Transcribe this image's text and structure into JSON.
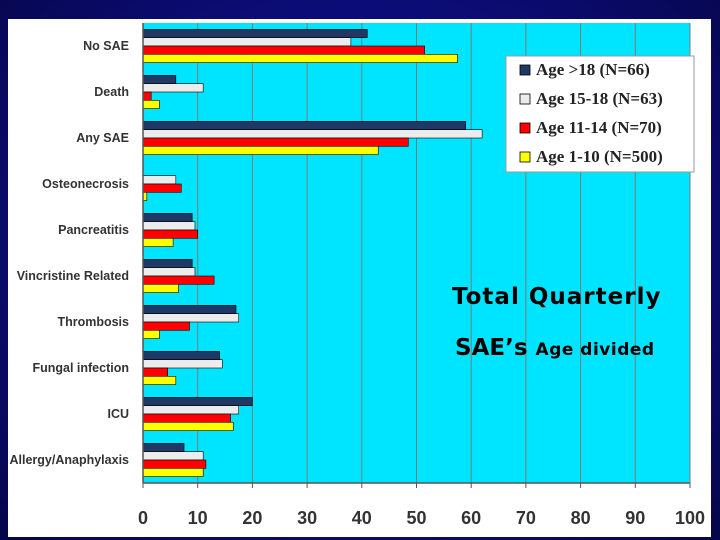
{
  "overlay": {
    "title_line1": "Total Quarterly",
    "title_line2_big": "SAE’s",
    "title_line2_small": "Age divided"
  },
  "chart_data": {
    "type": "bar",
    "orientation": "horizontal",
    "categories": [
      "No SAE",
      "Death",
      "Any SAE",
      "Osteonecrosis",
      "Pancreatitis",
      "Vincristine Related",
      "Thrombosis",
      "Fungal infection",
      "ICU",
      "Allergy/Anaphylaxis"
    ],
    "series": [
      {
        "name": "Age >18 (N=66)",
        "color": "#1f3864",
        "values": [
          41,
          6,
          59,
          0,
          9,
          9,
          17,
          14,
          20,
          7.5
        ]
      },
      {
        "name": "Age 15-18 (N=63)",
        "color": "#ececec",
        "values": [
          38,
          11,
          62,
          6,
          9.5,
          9.5,
          17.5,
          14.5,
          17.5,
          11
        ]
      },
      {
        "name": "Age 11-14 (N=70)",
        "color": "#ff0000",
        "values": [
          51.5,
          1.5,
          48.5,
          7,
          10,
          13,
          8.5,
          4.5,
          16,
          11.5
        ]
      },
      {
        "name": "Age 1-10 (N=500)",
        "color": "#ffff00",
        "values": [
          57.5,
          3,
          43,
          0.7,
          5.5,
          6.5,
          3,
          6,
          16.5,
          11
        ]
      }
    ],
    "xlim": [
      0,
      100
    ],
    "xticks": [
      0,
      10,
      20,
      30,
      40,
      50,
      60,
      70,
      80,
      90,
      100
    ],
    "grid": true,
    "plot_background": "#00e5ff",
    "legend_position": "top-right"
  }
}
